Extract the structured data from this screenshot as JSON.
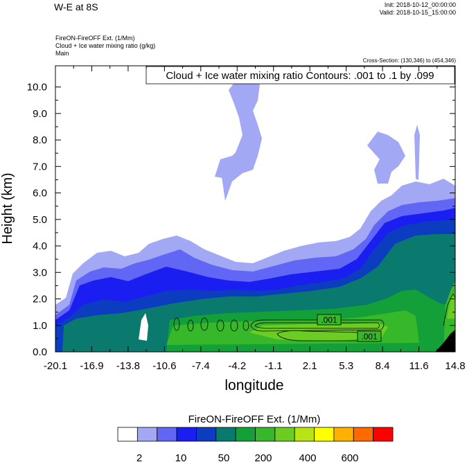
{
  "header": {
    "title": "W-E at 8S",
    "init": "Init: 2018-10-12_00:00:00",
    "valid": "Valid: 2018-10-15_15:00:00",
    "field_line1": "FireON-FireOFF Ext.   (1/Mm)",
    "field_line2": "Cloud + Ice water mixing ratio   (g/kg)",
    "field_line3": "Main",
    "cross_section": "Cross-Section: (130,346) to (454,346)"
  },
  "chart_data": {
    "type": "heatmap",
    "contour_title": "Cloud + Ice water mixing ratio Contours: .001 to .1 by .099",
    "xlabel": "longitude",
    "ylabel": "Height (km)",
    "x_ticks": [
      "-20.1",
      "-16.9",
      "-13.8",
      "-10.6",
      "-7.4",
      "-4.2",
      "-1.1",
      "2.1",
      "5.3",
      "8.4",
      "11.6",
      "14.8"
    ],
    "y_ticks": [
      "0.0",
      "1.0",
      "2.0",
      "3.0",
      "4.0",
      "5.0",
      "6.0",
      "7.0",
      "8.0",
      "9.0",
      "10.0"
    ],
    "ylim": [
      0,
      10.8
    ],
    "contour_labels": [
      ".001",
      ".001"
    ],
    "colorbar": {
      "title": "FireON-FireOFF Ext.  (1/Mm)",
      "labels": [
        "2",
        "10",
        "50",
        "200",
        "400",
        "600"
      ],
      "colors": [
        "#ffffff",
        "#a3a8f5",
        "#6266f4",
        "#1a1ef0",
        "#0c3cbf",
        "#0a7a6e",
        "#13a038",
        "#36b82a",
        "#6ccc22",
        "#b8e314",
        "#ffff00",
        "#ffb000",
        "#ff6a00",
        "#ff0000"
      ]
    }
  }
}
